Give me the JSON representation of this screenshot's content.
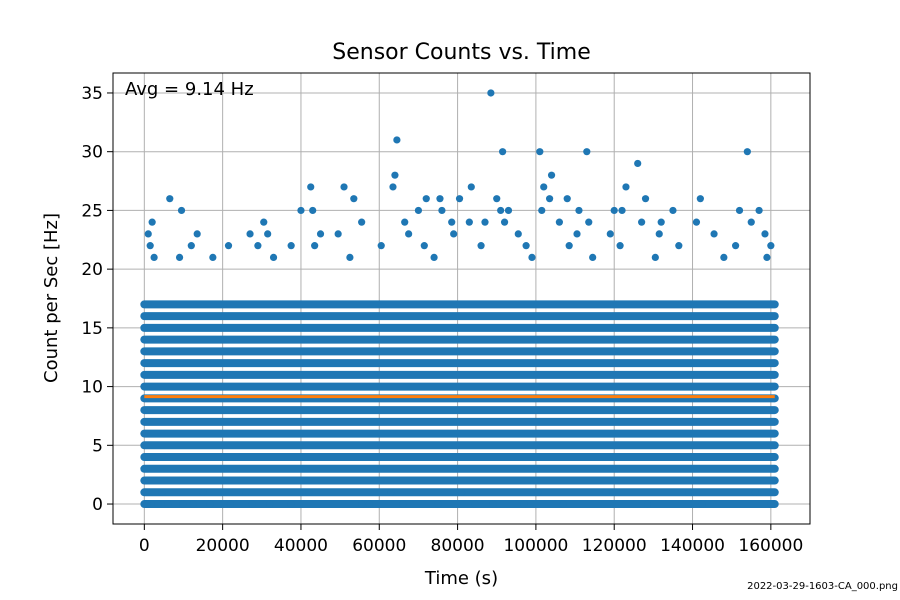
{
  "chart_data": {
    "type": "scatter",
    "title": "Sensor Counts vs. Time",
    "xlabel": "Time (s)",
    "ylabel": "Count per Sec [Hz]",
    "xlim": [
      -8000,
      170000
    ],
    "ylim": [
      -1.7,
      36.7
    ],
    "xticks": [
      0,
      20000,
      40000,
      60000,
      80000,
      100000,
      120000,
      140000,
      160000
    ],
    "xtick_labels": [
      "0",
      "20000",
      "40000",
      "60000",
      "80000",
      "100000",
      "120000",
      "140000",
      "160000"
    ],
    "yticks": [
      0,
      5,
      10,
      15,
      20,
      25,
      30,
      35
    ],
    "ytick_labels": [
      "0",
      "5",
      "10",
      "15",
      "20",
      "25",
      "30",
      "35"
    ],
    "grid": true,
    "annotation": "Avg = 9.14 Hz",
    "footer": "2022-03-29-1603-CA_000.png",
    "colors": {
      "points": "#1f77b4",
      "average_line": "#ff7f0e"
    },
    "x_range": [
      0,
      161000
    ],
    "dense_band": {
      "y_min": 0,
      "y_max": 17,
      "step": 1
    },
    "average": {
      "value": 9.14
    },
    "series": [
      {
        "type": "scatter",
        "points": [
          [
            88500,
            35
          ],
          [
            64500,
            31
          ],
          [
            91500,
            30
          ],
          [
            101000,
            30
          ],
          [
            113000,
            30
          ],
          [
            154000,
            30
          ],
          [
            126000,
            29
          ],
          [
            64000,
            28
          ],
          [
            104000,
            28
          ],
          [
            42500,
            27
          ],
          [
            51000,
            27
          ],
          [
            63500,
            27
          ],
          [
            83500,
            27
          ],
          [
            102000,
            27
          ],
          [
            123000,
            27
          ],
          [
            6500,
            26
          ],
          [
            53500,
            26
          ],
          [
            72000,
            26
          ],
          [
            75500,
            26
          ],
          [
            80500,
            26
          ],
          [
            90000,
            26
          ],
          [
            103500,
            26
          ],
          [
            108000,
            26
          ],
          [
            128000,
            26
          ],
          [
            142000,
            26
          ],
          [
            9500,
            25
          ],
          [
            40000,
            25
          ],
          [
            43000,
            25
          ],
          [
            70000,
            25
          ],
          [
            76000,
            25
          ],
          [
            91000,
            25
          ],
          [
            93000,
            25
          ],
          [
            101500,
            25
          ],
          [
            111000,
            25
          ],
          [
            120000,
            25
          ],
          [
            122000,
            25
          ],
          [
            135000,
            25
          ],
          [
            152000,
            25
          ],
          [
            157000,
            25
          ],
          [
            2000,
            24
          ],
          [
            30500,
            24
          ],
          [
            55500,
            24
          ],
          [
            66500,
            24
          ],
          [
            78500,
            24
          ],
          [
            83000,
            24
          ],
          [
            87000,
            24
          ],
          [
            92000,
            24
          ],
          [
            106000,
            24
          ],
          [
            113500,
            24
          ],
          [
            127000,
            24
          ],
          [
            132000,
            24
          ],
          [
            141000,
            24
          ],
          [
            155000,
            24
          ]
        ]
      },
      {
        "type": "scatter",
        "points": [
          [
            1000,
            23
          ],
          [
            13500,
            23
          ],
          [
            27000,
            23
          ],
          [
            31500,
            23
          ],
          [
            45000,
            23
          ],
          [
            49500,
            23
          ],
          [
            67500,
            23
          ],
          [
            79000,
            23
          ],
          [
            95500,
            23
          ],
          [
            110500,
            23
          ],
          [
            119000,
            23
          ],
          [
            131500,
            23
          ],
          [
            145500,
            23
          ],
          [
            158500,
            23
          ],
          [
            1500,
            22
          ],
          [
            12000,
            22
          ],
          [
            21500,
            22
          ],
          [
            29000,
            22
          ],
          [
            37500,
            22
          ],
          [
            43500,
            22
          ],
          [
            60500,
            22
          ],
          [
            71500,
            22
          ],
          [
            86000,
            22
          ],
          [
            97500,
            22
          ],
          [
            108500,
            22
          ],
          [
            121500,
            22
          ],
          [
            136500,
            22
          ],
          [
            151000,
            22
          ],
          [
            160000,
            22
          ],
          [
            2500,
            21
          ],
          [
            9000,
            21
          ],
          [
            17500,
            21
          ],
          [
            33000,
            21
          ],
          [
            52500,
            21
          ],
          [
            74000,
            21
          ],
          [
            99000,
            21
          ],
          [
            114500,
            21
          ],
          [
            130500,
            21
          ],
          [
            148000,
            21
          ],
          [
            159000,
            21
          ]
        ]
      },
      {
        "type": "scatter",
        "points": [
          [
            800,
            0
          ],
          [
            3500,
            0
          ],
          [
            6000,
            0
          ],
          [
            9800,
            0
          ],
          [
            12500,
            0
          ],
          [
            16800,
            0
          ],
          [
            22000,
            0
          ],
          [
            27500,
            0
          ],
          [
            32000,
            0
          ],
          [
            37500,
            0
          ],
          [
            55500,
            0
          ],
          [
            57500,
            0
          ],
          [
            66000,
            0
          ],
          [
            75000,
            0
          ],
          [
            84500,
            0
          ],
          [
            89000,
            0
          ],
          [
            97000,
            0
          ],
          [
            107000,
            0
          ],
          [
            128500,
            0
          ],
          [
            142500,
            0
          ],
          [
            160000,
            0
          ],
          [
            4500,
            1
          ],
          [
            15000,
            1
          ],
          [
            26000,
            1
          ],
          [
            42000,
            1
          ],
          [
            63000,
            1
          ],
          [
            81000,
            1
          ],
          [
            100500,
            1
          ],
          [
            118000,
            1
          ],
          [
            139000,
            1
          ],
          [
            156000,
            1
          ]
        ]
      }
    ]
  }
}
